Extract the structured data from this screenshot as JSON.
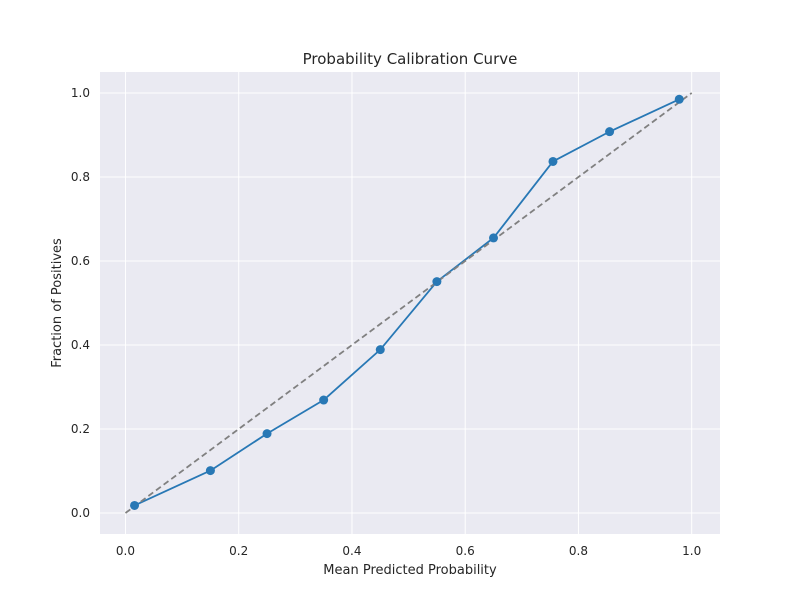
{
  "chart_data": {
    "type": "line",
    "title": "Probability Calibration Curve",
    "xlabel": "Mean Predicted Probability",
    "ylabel": "Fraction of Positives",
    "xlim": [
      -0.045,
      1.05
    ],
    "ylim": [
      -0.05,
      1.05
    ],
    "xticks": [
      0.0,
      0.2,
      0.4,
      0.6,
      0.8,
      1.0
    ],
    "xtick_labels": [
      "0.0",
      "0.2",
      "0.4",
      "0.6",
      "0.8",
      "1.0"
    ],
    "yticks": [
      0.0,
      0.2,
      0.4,
      0.6,
      0.8,
      1.0
    ],
    "ytick_labels": [
      "0.0",
      "0.2",
      "0.4",
      "0.6",
      "0.8",
      "1.0"
    ],
    "grid": true,
    "series": [
      {
        "x": [
          0.016,
          0.15,
          0.25,
          0.35,
          0.45,
          0.55,
          0.65,
          0.755,
          0.855,
          0.978
        ],
        "y": [
          0.018,
          0.101,
          0.189,
          0.269,
          0.389,
          0.551,
          0.655,
          0.837,
          0.908,
          0.985
        ],
        "color": "#2878b5",
        "style": "solid",
        "marker": "circle"
      },
      {
        "x": [
          0.0,
          1.0
        ],
        "y": [
          0.0,
          1.0
        ],
        "color": "#808080",
        "style": "dashed",
        "marker": "none"
      }
    ],
    "background_color": "#eaeaf2",
    "grid_color": "#ffffff"
  }
}
